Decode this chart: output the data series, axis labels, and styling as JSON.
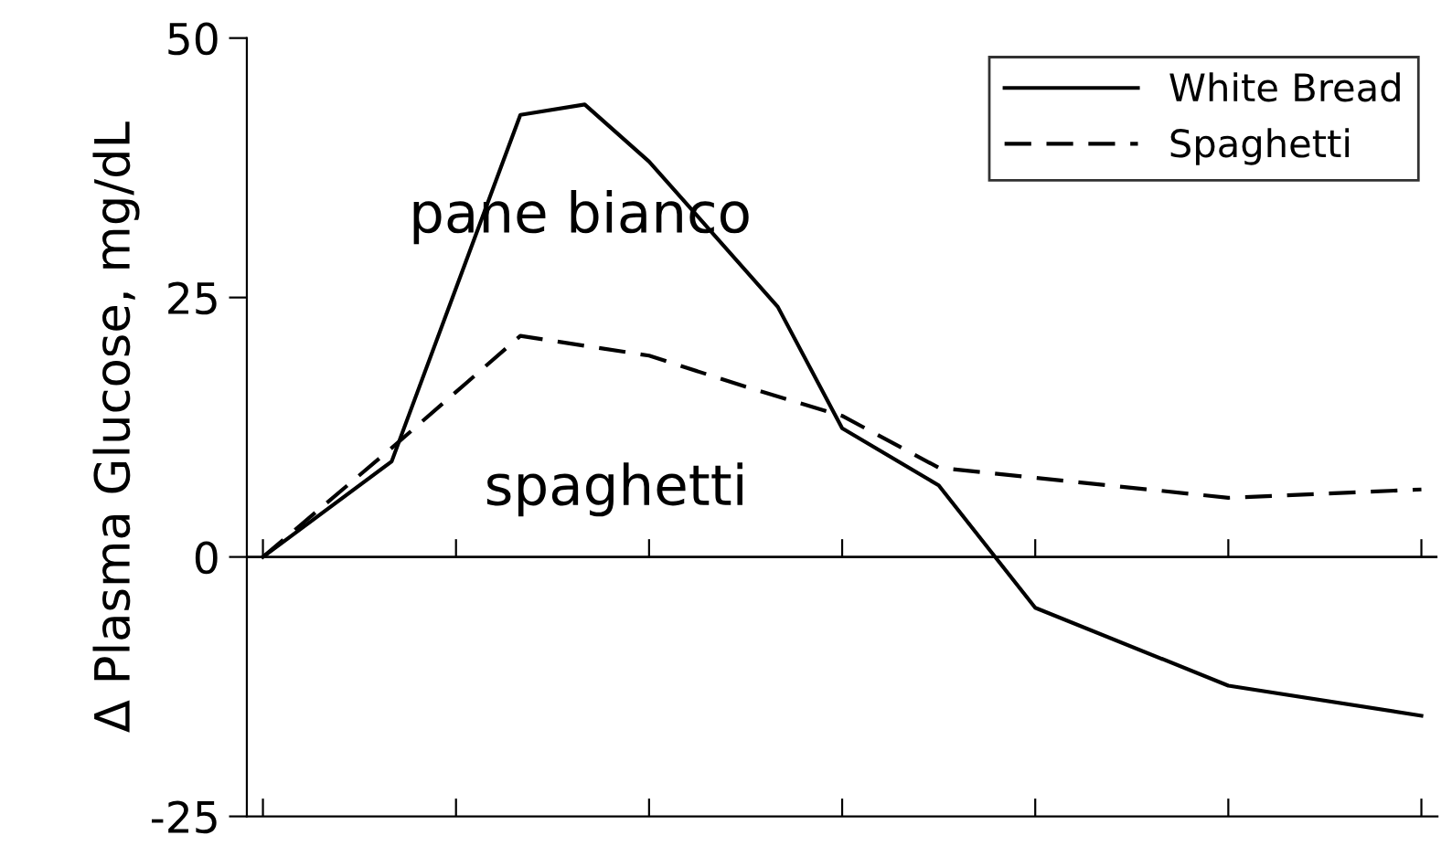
{
  "chart_data": {
    "type": "line",
    "ylabel": "Δ Plasma Glucose, mg/dL",
    "categories": [
      null,
      null,
      null,
      null,
      null,
      null,
      null,
      null,
      null,
      null,
      null,
      null,
      null,
      null,
      null,
      null,
      null,
      null,
      null,
      null,
      null,
      null,
      null,
      null,
      null,
      null,
      null,
      null,
      null,
      null,
      null,
      null,
      null,
      null,
      null,
      null,
      null
    ],
    "ylim": [
      -25,
      50
    ],
    "yticks": [
      -25,
      0,
      25,
      50
    ],
    "grid": false,
    "ref_lines": [
      {
        "axis": "y",
        "value": 0,
        "color": "#000000"
      }
    ],
    "legend": "top right",
    "marker": "none",
    "series": [
      {
        "name": "White Bread",
        "color": "#000000",
        "line_style": "solid",
        "values": [
          0,
          null,
          null,
          null,
          9.2,
          null,
          null,
          null,
          42.6,
          null,
          43.6,
          null,
          38.1,
          null,
          null,
          null,
          24.1,
          null,
          12.4,
          null,
          null,
          6.9,
          null,
          null,
          -4.9,
          null,
          null,
          null,
          null,
          null,
          -12.4,
          null,
          null,
          null,
          null,
          null,
          -15.3
        ]
      },
      {
        "name": "Spaghetti",
        "color": "#000000",
        "line_style": "dashed",
        "values": [
          0,
          null,
          null,
          null,
          10.5,
          null,
          null,
          null,
          21.3,
          null,
          null,
          null,
          19.4,
          null,
          null,
          16.4,
          null,
          null,
          13.6,
          null,
          null,
          8.6,
          null,
          null,
          null,
          null,
          null,
          null,
          null,
          null,
          5.7,
          null,
          null,
          null,
          null,
          null,
          6.5
        ]
      }
    ],
    "annotations": [
      "pane bianco",
      "spaghetti"
    ]
  }
}
